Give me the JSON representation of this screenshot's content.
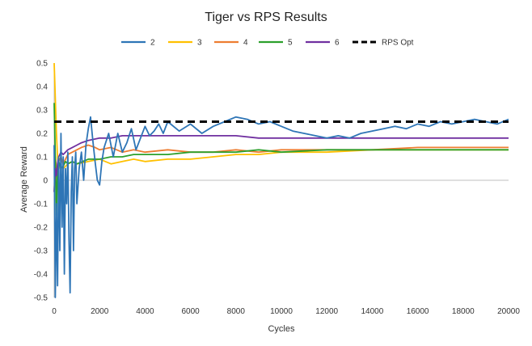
{
  "chart_data": {
    "type": "line",
    "title": "Tiger vs RPS Results",
    "xlabel": "Cycles",
    "ylabel": "Average Reward",
    "xlim": [
      0,
      20000
    ],
    "ylim": [
      -0.5,
      0.5
    ],
    "x_ticks": [
      0,
      2000,
      4000,
      6000,
      8000,
      10000,
      12000,
      14000,
      16000,
      18000,
      20000
    ],
    "y_ticks": [
      -0.5,
      -0.4,
      -0.3,
      -0.2,
      -0.1,
      0,
      0.1,
      0.2,
      0.3,
      0.4,
      0.5
    ],
    "x_tick_labels": [
      "0",
      "2000",
      "4000",
      "6000",
      "8000",
      "10000",
      "12000",
      "14000",
      "16000",
      "18000",
      "20000"
    ],
    "y_tick_labels": [
      "-0.5",
      "-0.4",
      "-0.3",
      "-0.2",
      "-0.1",
      "0",
      "0.1",
      "0.2",
      "0.3",
      "0.4",
      "0.5"
    ],
    "grid": false,
    "legend_position": "top",
    "series": [
      {
        "name": "2",
        "color": "#2e75b6",
        "style": "solid",
        "x": [
          0,
          50,
          100,
          150,
          200,
          250,
          300,
          350,
          400,
          450,
          500,
          550,
          600,
          650,
          700,
          750,
          800,
          850,
          900,
          950,
          1000,
          1100,
          1200,
          1300,
          1400,
          1500,
          1600,
          1700,
          1800,
          1900,
          2000,
          2100,
          2200,
          2400,
          2600,
          2800,
          3000,
          3200,
          3400,
          3600,
          3800,
          4000,
          4200,
          4400,
          4600,
          4800,
          5000,
          5500,
          6000,
          6500,
          7000,
          7500,
          8000,
          8500,
          9000,
          9500,
          10000,
          10500,
          11000,
          11500,
          12000,
          12500,
          13000,
          13500,
          14000,
          14500,
          15000,
          15500,
          16000,
          16500,
          17000,
          17500,
          18000,
          18500,
          19000,
          19500,
          20000
        ],
        "values": [
          0.15,
          -0.5,
          -0.1,
          -0.45,
          0.1,
          -0.3,
          0.2,
          -0.2,
          0.1,
          -0.4,
          0.05,
          -0.1,
          0.12,
          -0.25,
          -0.48,
          -0.05,
          0.1,
          -0.3,
          0.05,
          0.12,
          -0.1,
          0.05,
          0.12,
          0.0,
          0.15,
          0.22,
          0.27,
          0.17,
          0.08,
          0.0,
          -0.02,
          0.08,
          0.14,
          0.2,
          0.1,
          0.2,
          0.12,
          0.16,
          0.22,
          0.13,
          0.18,
          0.23,
          0.19,
          0.21,
          0.24,
          0.2,
          0.25,
          0.21,
          0.24,
          0.2,
          0.23,
          0.25,
          0.27,
          0.26,
          0.24,
          0.25,
          0.23,
          0.21,
          0.2,
          0.19,
          0.18,
          0.19,
          0.18,
          0.2,
          0.21,
          0.22,
          0.23,
          0.22,
          0.24,
          0.23,
          0.25,
          0.24,
          0.25,
          0.26,
          0.25,
          0.24,
          0.26
        ]
      },
      {
        "name": "3",
        "color": "#ffc000",
        "style": "solid",
        "x": [
          0,
          50,
          100,
          150,
          200,
          300,
          400,
          600,
          800,
          1000,
          1500,
          2000,
          2500,
          3000,
          3500,
          4000,
          5000,
          6000,
          7000,
          8000,
          9000,
          10000,
          12000,
          14000,
          16000,
          18000,
          20000
        ],
        "values": [
          0.5,
          0.35,
          0.2,
          0.1,
          0.05,
          0.06,
          0.05,
          0.07,
          0.08,
          0.07,
          0.08,
          0.09,
          0.07,
          0.08,
          0.09,
          0.08,
          0.09,
          0.09,
          0.1,
          0.11,
          0.11,
          0.12,
          0.12,
          0.13,
          0.13,
          0.13,
          0.13
        ]
      },
      {
        "name": "4",
        "color": "#ed7d31",
        "style": "solid",
        "x": [
          0,
          50,
          100,
          150,
          200,
          300,
          400,
          600,
          800,
          1000,
          1200,
          1500,
          1800,
          2000,
          2500,
          3000,
          3500,
          4000,
          5000,
          6000,
          7000,
          8000,
          9000,
          10000,
          12000,
          14000,
          16000,
          18000,
          20000
        ],
        "values": [
          -0.05,
          0.1,
          0.05,
          -0.02,
          0.08,
          0.1,
          0.07,
          0.11,
          0.12,
          0.13,
          0.14,
          0.15,
          0.14,
          0.13,
          0.14,
          0.12,
          0.13,
          0.12,
          0.13,
          0.12,
          0.12,
          0.13,
          0.12,
          0.13,
          0.13,
          0.13,
          0.14,
          0.14,
          0.14
        ]
      },
      {
        "name": "5",
        "color": "#2ca02c",
        "style": "solid",
        "x": [
          0,
          50,
          100,
          150,
          200,
          300,
          400,
          500,
          600,
          800,
          1000,
          1500,
          2000,
          2500,
          3000,
          3500,
          4000,
          5000,
          6000,
          7000,
          8000,
          9000,
          10000,
          12000,
          14000,
          16000,
          18000,
          20000
        ],
        "values": [
          0.33,
          0.1,
          -0.15,
          0.05,
          0.08,
          0.05,
          0.06,
          0.08,
          0.07,
          0.08,
          0.07,
          0.09,
          0.09,
          0.1,
          0.1,
          0.11,
          0.11,
          0.11,
          0.12,
          0.12,
          0.12,
          0.13,
          0.12,
          0.13,
          0.13,
          0.13,
          0.13,
          0.13
        ]
      },
      {
        "name": "6",
        "color": "#7030a0",
        "style": "solid",
        "x": [
          0,
          50,
          100,
          150,
          200,
          300,
          400,
          600,
          800,
          1000,
          1200,
          1500,
          2000,
          2500,
          3000,
          4000,
          5000,
          6000,
          7000,
          8000,
          9000,
          10000,
          12000,
          14000,
          16000,
          18000,
          20000
        ],
        "values": [
          -0.05,
          0.05,
          0.02,
          0.07,
          0.1,
          0.12,
          0.11,
          0.13,
          0.14,
          0.15,
          0.16,
          0.17,
          0.18,
          0.18,
          0.19,
          0.19,
          0.19,
          0.19,
          0.19,
          0.19,
          0.18,
          0.18,
          0.18,
          0.18,
          0.18,
          0.18,
          0.18
        ]
      },
      {
        "name": "RPS Opt",
        "color": "#000000",
        "style": "dashed",
        "x": [
          0,
          20000
        ],
        "values": [
          0.25,
          0.25
        ]
      }
    ]
  }
}
